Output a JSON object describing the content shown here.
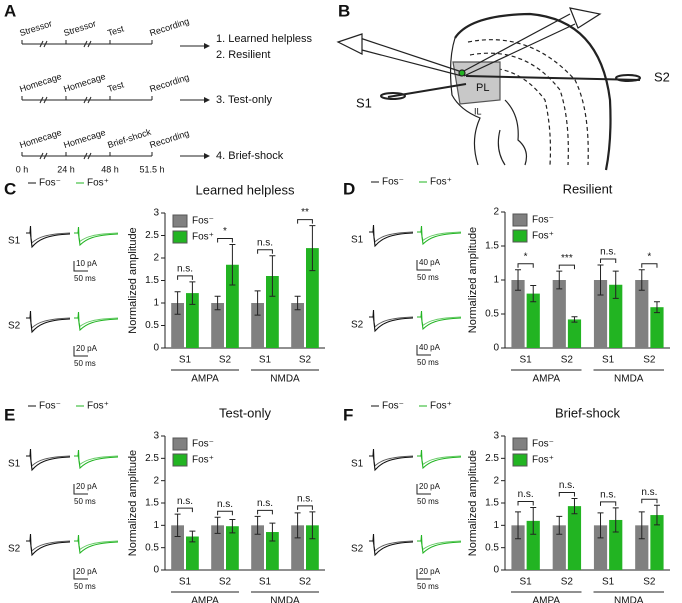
{
  "panel_labels": [
    "A",
    "B",
    "C",
    "D",
    "E",
    "F"
  ],
  "panel_a": {
    "rows": [
      {
        "steps": [
          "Stressor",
          "Stressor",
          "Test",
          "Recording"
        ],
        "outcomes": [
          "1. Learned helpless",
          "2. Resilient"
        ]
      },
      {
        "steps": [
          "Homecage",
          "Homecage",
          "Test",
          "Recording"
        ],
        "outcomes": [
          "3. Test-only"
        ]
      },
      {
        "steps": [
          "Homecage",
          "Homecage",
          "Brief-shock",
          "Recording"
        ],
        "outcomes": [
          "4. Brief-shock"
        ]
      }
    ],
    "times": [
      "0 h",
      "24 h",
      "48 h",
      "51.5 h"
    ]
  },
  "panel_b": {
    "labels": [
      "PL",
      "IL",
      "S1",
      "S2"
    ]
  },
  "chart_data": [
    {
      "type": "bar",
      "title": "Learned helpless",
      "ylabel": "Normalized amplitude",
      "categories": [
        "S1",
        "S2",
        "S1",
        "S2"
      ],
      "groups": [
        "AMPA",
        "NMDA"
      ],
      "ylim": [
        0,
        3
      ],
      "yticks": [
        0,
        0.5,
        1,
        1.5,
        2,
        2.5,
        3
      ],
      "series": [
        {
          "name": "Fos⁻",
          "color": "#808080",
          "values": [
            1,
            1,
            1,
            1
          ],
          "errors": [
            0.25,
            0.15,
            0.27,
            0.15
          ]
        },
        {
          "name": "Fos⁺",
          "color": "#22b422",
          "values": [
            1.22,
            1.85,
            1.6,
            2.22
          ],
          "errors": [
            0.25,
            0.45,
            0.45,
            0.5
          ]
        }
      ],
      "significance": [
        "n.s.",
        "*",
        "n.s.",
        "**"
      ],
      "scale_bars": [
        [
          "10 pA",
          "50 ms"
        ],
        [
          "20 pA",
          "50 ms"
        ]
      ]
    },
    {
      "type": "bar",
      "title": "Resilient",
      "ylabel": "Normalized amplitude",
      "categories": [
        "S1",
        "S2",
        "S1",
        "S2"
      ],
      "groups": [
        "AMPA",
        "NMDA"
      ],
      "ylim": [
        0,
        2
      ],
      "yticks": [
        0,
        0.5,
        1,
        1.5,
        2
      ],
      "series": [
        {
          "name": "Fos⁻",
          "color": "#808080",
          "values": [
            1,
            1,
            1,
            1
          ],
          "errors": [
            0.15,
            0.13,
            0.22,
            0.15
          ]
        },
        {
          "name": "Fos⁺",
          "color": "#22b422",
          "values": [
            0.8,
            0.42,
            0.93,
            0.6
          ],
          "errors": [
            0.12,
            0.04,
            0.2,
            0.08
          ]
        }
      ],
      "significance": [
        "*",
        "***",
        "n.s.",
        "*"
      ],
      "scale_bars": [
        [
          "40 pA",
          "50 ms"
        ],
        [
          "40 pA",
          "50 ms"
        ]
      ]
    },
    {
      "type": "bar",
      "title": "Test-only",
      "ylabel": "Normalized amplitude",
      "categories": [
        "S1",
        "S2",
        "S1",
        "S2"
      ],
      "groups": [
        "AMPA",
        "NMDA"
      ],
      "ylim": [
        0,
        3
      ],
      "yticks": [
        0,
        0.5,
        1,
        1.5,
        2,
        2.5,
        3
      ],
      "series": [
        {
          "name": "Fos⁻",
          "color": "#808080",
          "values": [
            1,
            1,
            1,
            1
          ],
          "errors": [
            0.25,
            0.18,
            0.2,
            0.28
          ]
        },
        {
          "name": "Fos⁺",
          "color": "#22b422",
          "values": [
            0.75,
            0.98,
            0.85,
            1.0
          ],
          "errors": [
            0.12,
            0.15,
            0.2,
            0.3
          ]
        }
      ],
      "significance": [
        "n.s.",
        "n.s.",
        "n.s.",
        "n.s."
      ],
      "scale_bars": [
        [
          "20 pA",
          "50 ms"
        ],
        [
          "20 pA",
          "50 ms"
        ]
      ]
    },
    {
      "type": "bar",
      "title": "Brief-shock",
      "ylabel": "Normalized amplitude",
      "categories": [
        "S1",
        "S2",
        "S1",
        "S2"
      ],
      "groups": [
        "AMPA",
        "NMDA"
      ],
      "ylim": [
        0,
        3
      ],
      "yticks": [
        0,
        0.5,
        1,
        1.5,
        2,
        2.5,
        3
      ],
      "series": [
        {
          "name": "Fos⁻",
          "color": "#808080",
          "values": [
            1,
            1,
            1,
            1
          ],
          "errors": [
            0.3,
            0.2,
            0.28,
            0.3
          ]
        },
        {
          "name": "Fos⁺",
          "color": "#22b422",
          "values": [
            1.1,
            1.43,
            1.12,
            1.23
          ],
          "errors": [
            0.3,
            0.17,
            0.27,
            0.22
          ]
        }
      ],
      "significance": [
        "n.s.",
        "n.s.",
        "n.s.",
        "n.s."
      ],
      "scale_bars": [
        [
          "20 pA",
          "50 ms"
        ],
        [
          "20 pA",
          "50 ms"
        ]
      ]
    }
  ]
}
